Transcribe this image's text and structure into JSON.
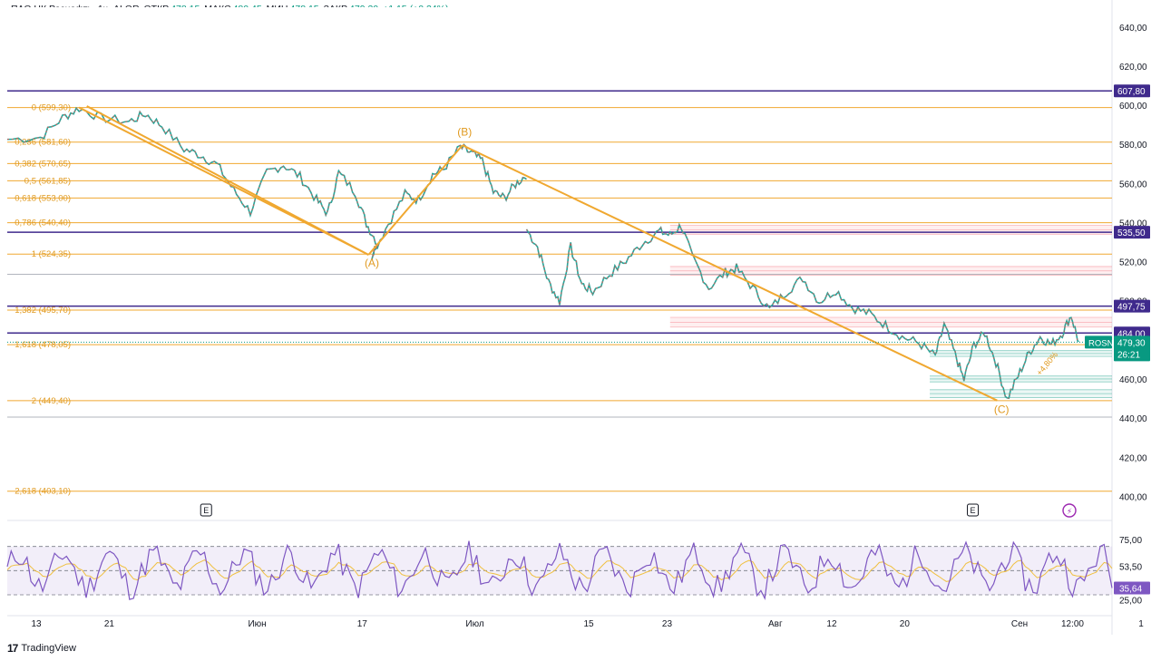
{
  "header": {
    "symbol": "ПАО НК Роснефть, 1ч, ALOR",
    "open_label": "ОТКР",
    "open": "478,15",
    "high_label": "МАКС",
    "high": "480,45",
    "low_label": "МИН",
    "low": "478,15",
    "close_label": "ЗАКР",
    "close": "479,30",
    "change": "+1,15 (+0,24%)"
  },
  "brand": {
    "logo": "17",
    "name": "TradingView"
  },
  "chart_data": {
    "type": "line",
    "ylim": [
      390,
      645
    ],
    "y_ticks": [
      "640,00",
      "620,00",
      "600,00",
      "580,00",
      "560,00",
      "540,00",
      "520,00",
      "500,00",
      "480,00",
      "460,00",
      "440,00",
      "420,00",
      "400,00"
    ],
    "y_tick_values": [
      640,
      620,
      600,
      580,
      560,
      540,
      520,
      500,
      480,
      460,
      440,
      420,
      400
    ],
    "x_ticks": [
      "13",
      "21",
      "Июн",
      "17",
      "Июл",
      "15",
      "23",
      "Авг",
      "12",
      "20",
      "Сен",
      "12:00",
      "1"
    ],
    "x_tick_pos": [
      0.0,
      0.066,
      0.2,
      0.295,
      0.397,
      0.5,
      0.571,
      0.669,
      0.72,
      0.786,
      0.89,
      0.938,
      1.0
    ],
    "price_path": [
      [
        0.0,
        583
      ],
      [
        0.03,
        584
      ],
      [
        0.05,
        594
      ],
      [
        0.065,
        599
      ],
      [
        0.085,
        594
      ],
      [
        0.11,
        592
      ],
      [
        0.125,
        596
      ],
      [
        0.14,
        590
      ],
      [
        0.16,
        578
      ],
      [
        0.175,
        575
      ],
      [
        0.19,
        570
      ],
      [
        0.205,
        557
      ],
      [
        0.22,
        546
      ],
      [
        0.235,
        566
      ],
      [
        0.25,
        570
      ],
      [
        0.265,
        564
      ],
      [
        0.28,
        552
      ],
      [
        0.29,
        545
      ],
      [
        0.3,
        566
      ],
      [
        0.315,
        556
      ],
      [
        0.325,
        540
      ],
      [
        0.335,
        530
      ],
      [
        0.33,
        524
      ],
      [
        0.345,
        540
      ],
      [
        0.36,
        555
      ],
      [
        0.372,
        552
      ],
      [
        0.385,
        565
      ],
      [
        0.395,
        568
      ],
      [
        0.41,
        579
      ],
      [
        0.42,
        576
      ],
      [
        0.43,
        572
      ],
      [
        0.44,
        556
      ],
      [
        0.45,
        553
      ],
      [
        0.46,
        560
      ],
      [
        0.47,
        565
      ]
    ],
    "price_path2": [
      [
        0.47,
        537
      ],
      [
        0.48,
        528
      ],
      [
        0.49,
        510
      ],
      [
        0.5,
        500
      ],
      [
        0.51,
        528
      ],
      [
        0.52,
        509
      ],
      [
        0.53,
        505
      ],
      [
        0.545,
        514
      ],
      [
        0.56,
        521
      ],
      [
        0.575,
        530
      ],
      [
        0.59,
        536
      ],
      [
        0.6,
        534
      ],
      [
        0.61,
        539
      ],
      [
        0.62,
        523
      ],
      [
        0.635,
        507
      ],
      [
        0.65,
        515
      ],
      [
        0.66,
        517
      ],
      [
        0.675,
        507
      ],
      [
        0.69,
        496
      ],
      [
        0.705,
        505
      ],
      [
        0.72,
        512
      ],
      [
        0.735,
        500
      ],
      [
        0.75,
        506
      ],
      [
        0.765,
        497
      ],
      [
        0.78,
        494
      ],
      [
        0.795,
        488
      ],
      [
        0.81,
        482
      ],
      [
        0.825,
        479
      ],
      [
        0.84,
        472
      ],
      [
        0.848,
        488
      ],
      [
        0.858,
        473
      ],
      [
        0.866,
        460
      ],
      [
        0.875,
        478
      ],
      [
        0.885,
        484
      ],
      [
        0.895,
        469
      ],
      [
        0.905,
        450
      ],
      [
        0.915,
        462
      ],
      [
        0.925,
        474
      ],
      [
        0.935,
        482
      ],
      [
        0.945,
        478
      ],
      [
        0.955,
        484
      ],
      [
        0.963,
        493
      ],
      [
        0.97,
        479
      ]
    ],
    "elliott_waves": [
      {
        "from": [
          0.065,
          599.3
        ],
        "to": [
          0.327,
          524.0
        ]
      },
      {
        "from": [
          0.327,
          524.0
        ],
        "to": [
          0.412,
          580.0
        ]
      },
      {
        "from": [
          0.412,
          580.0
        ],
        "to": [
          0.896,
          449.5
        ]
      },
      {
        "from": [
          0.072,
          600
        ],
        "to": [
          0.327,
          524.0
        ]
      }
    ],
    "wave_labels": [
      {
        "text": "(A)",
        "x": 0.33,
        "y": 518
      },
      {
        "text": "(B)",
        "x": 0.414,
        "y": 585
      },
      {
        "text": "(C)",
        "x": 0.9,
        "y": 443
      }
    ],
    "fib_levels": [
      {
        "label": "0 (599,30)",
        "value": 599.3
      },
      {
        "label": "0,236 (581,60)",
        "value": 581.6
      },
      {
        "label": "0,382 (570,65)",
        "value": 570.65
      },
      {
        "label": "0,5 (561,85)",
        "value": 561.85
      },
      {
        "label": "0,618 (553,00)",
        "value": 553.0
      },
      {
        "label": "0,786 (540,40)",
        "value": 540.4
      },
      {
        "label": "1 (524,35)",
        "value": 524.35
      },
      {
        "label": "1,382 (495,70)",
        "value": 495.7
      },
      {
        "label": "1,618 (478,05)",
        "value": 478.05
      },
      {
        "label": "2 (449,40)",
        "value": 449.4
      },
      {
        "label": "2,618 (403,10)",
        "value": 403.1
      }
    ],
    "horizontal_lines": [
      {
        "label": "607,80",
        "value": 607.8
      },
      {
        "label": "535,50",
        "value": 535.5
      },
      {
        "label": "497,75",
        "value": 497.75
      },
      {
        "label": "484,00",
        "value": 484.0
      }
    ],
    "current_price": {
      "ticker": "ROSN",
      "value": 479.3,
      "label": "479,30",
      "timer": "26:21"
    },
    "gray_lines": [
      514.0,
      441.0
    ],
    "resistance_zones": [
      [
        534.5,
        539.0
      ],
      [
        513.5,
        518.0
      ],
      [
        487.0,
        492.0
      ]
    ],
    "support_zones": [
      [
        472.0,
        475.0
      ],
      [
        459.0,
        462.0
      ],
      [
        451.0,
        455.0
      ]
    ],
    "event_markers": [
      {
        "text": "E",
        "x": 0.18
      },
      {
        "text": "E",
        "x": 0.874
      }
    ],
    "annotation_text": "+4,80%",
    "rsi": {
      "ticks": [
        "75,00",
        "25,00"
      ],
      "tick_values": [
        75,
        25
      ],
      "upper": 70,
      "middle": 50,
      "lower": 30,
      "rsi_value": 35.64,
      "rsi_label": "35,64",
      "ma_value": 53.5,
      "ma_label": "53,50",
      "ylim": [
        15,
        90
      ]
    }
  }
}
